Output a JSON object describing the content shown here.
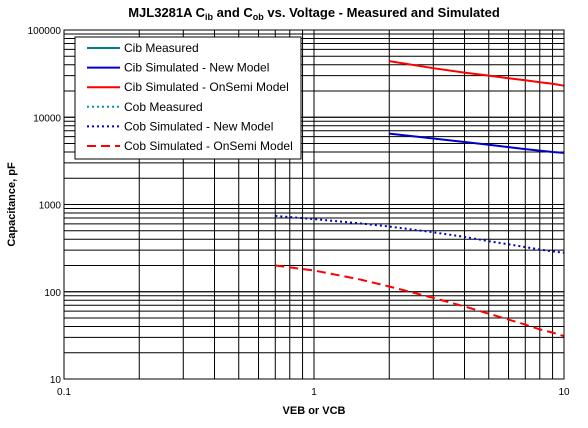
{
  "chart_data": {
    "type": "line",
    "title_parts": {
      "prefix": "MJL3281A C",
      "sub1": "ib",
      "mid": " and C",
      "sub2": "ob",
      "suffix": " vs. Voltage - Measured and Simulated"
    },
    "xlabel": "VEB or VCB",
    "ylabel": "Capacitance, pF",
    "x_scale": "log",
    "y_scale": "log",
    "xlim": [
      0.1,
      10
    ],
    "ylim": [
      10,
      100000
    ],
    "x_ticks": [
      {
        "value": 0.1,
        "label": "0.1"
      },
      {
        "value": 1,
        "label": "1"
      },
      {
        "value": 10,
        "label": "10"
      }
    ],
    "y_ticks": [
      {
        "value": 10,
        "label": "10"
      },
      {
        "value": 100,
        "label": "100"
      },
      {
        "value": 1000,
        "label": "1000"
      },
      {
        "value": 10000,
        "label": "10000"
      },
      {
        "value": 100000,
        "label": "100000"
      }
    ],
    "grid": true,
    "legend_position": "top-left",
    "series": [
      {
        "name": "Cib Measured",
        "color": "#008080",
        "dash": "solid",
        "x": [],
        "y": []
      },
      {
        "name": "Cib Simulated - New Model",
        "color": "#0000cc",
        "dash": "solid",
        "x": [
          2,
          3,
          4,
          5,
          6,
          7,
          8,
          9,
          10
        ],
        "y": [
          6500,
          5700,
          5200,
          4850,
          4550,
          4320,
          4150,
          4000,
          3900
        ]
      },
      {
        "name": "Cib Simulated - OnSemi Model",
        "color": "#ff0000",
        "dash": "solid",
        "x": [
          2,
          3,
          4,
          5,
          6,
          7,
          8,
          9,
          10
        ],
        "y": [
          44000,
          36500,
          32500,
          30000,
          28000,
          26500,
          25200,
          24200,
          23000
        ]
      },
      {
        "name": "Cob Measured",
        "color": "#009999",
        "dash": "dotted",
        "x": [],
        "y": []
      },
      {
        "name": "Cob Simulated - New Model",
        "color": "#0000cc",
        "dash": "dotted",
        "x": [
          0.7,
          1,
          1.5,
          2,
          3,
          4,
          5,
          6,
          7,
          8,
          9,
          10
        ],
        "y": [
          740,
          680,
          610,
          560,
          480,
          425,
          380,
          350,
          325,
          305,
          290,
          280
        ]
      },
      {
        "name": "Cob Simulated - OnSemi Model",
        "color": "#ff0000",
        "dash": "dashed",
        "x": [
          0.7,
          1,
          1.5,
          2,
          3,
          4,
          5,
          6,
          7,
          8,
          9,
          10
        ],
        "y": [
          200,
          175,
          140,
          115,
          85,
          68,
          56,
          48,
          42,
          37,
          34,
          31
        ]
      }
    ]
  }
}
